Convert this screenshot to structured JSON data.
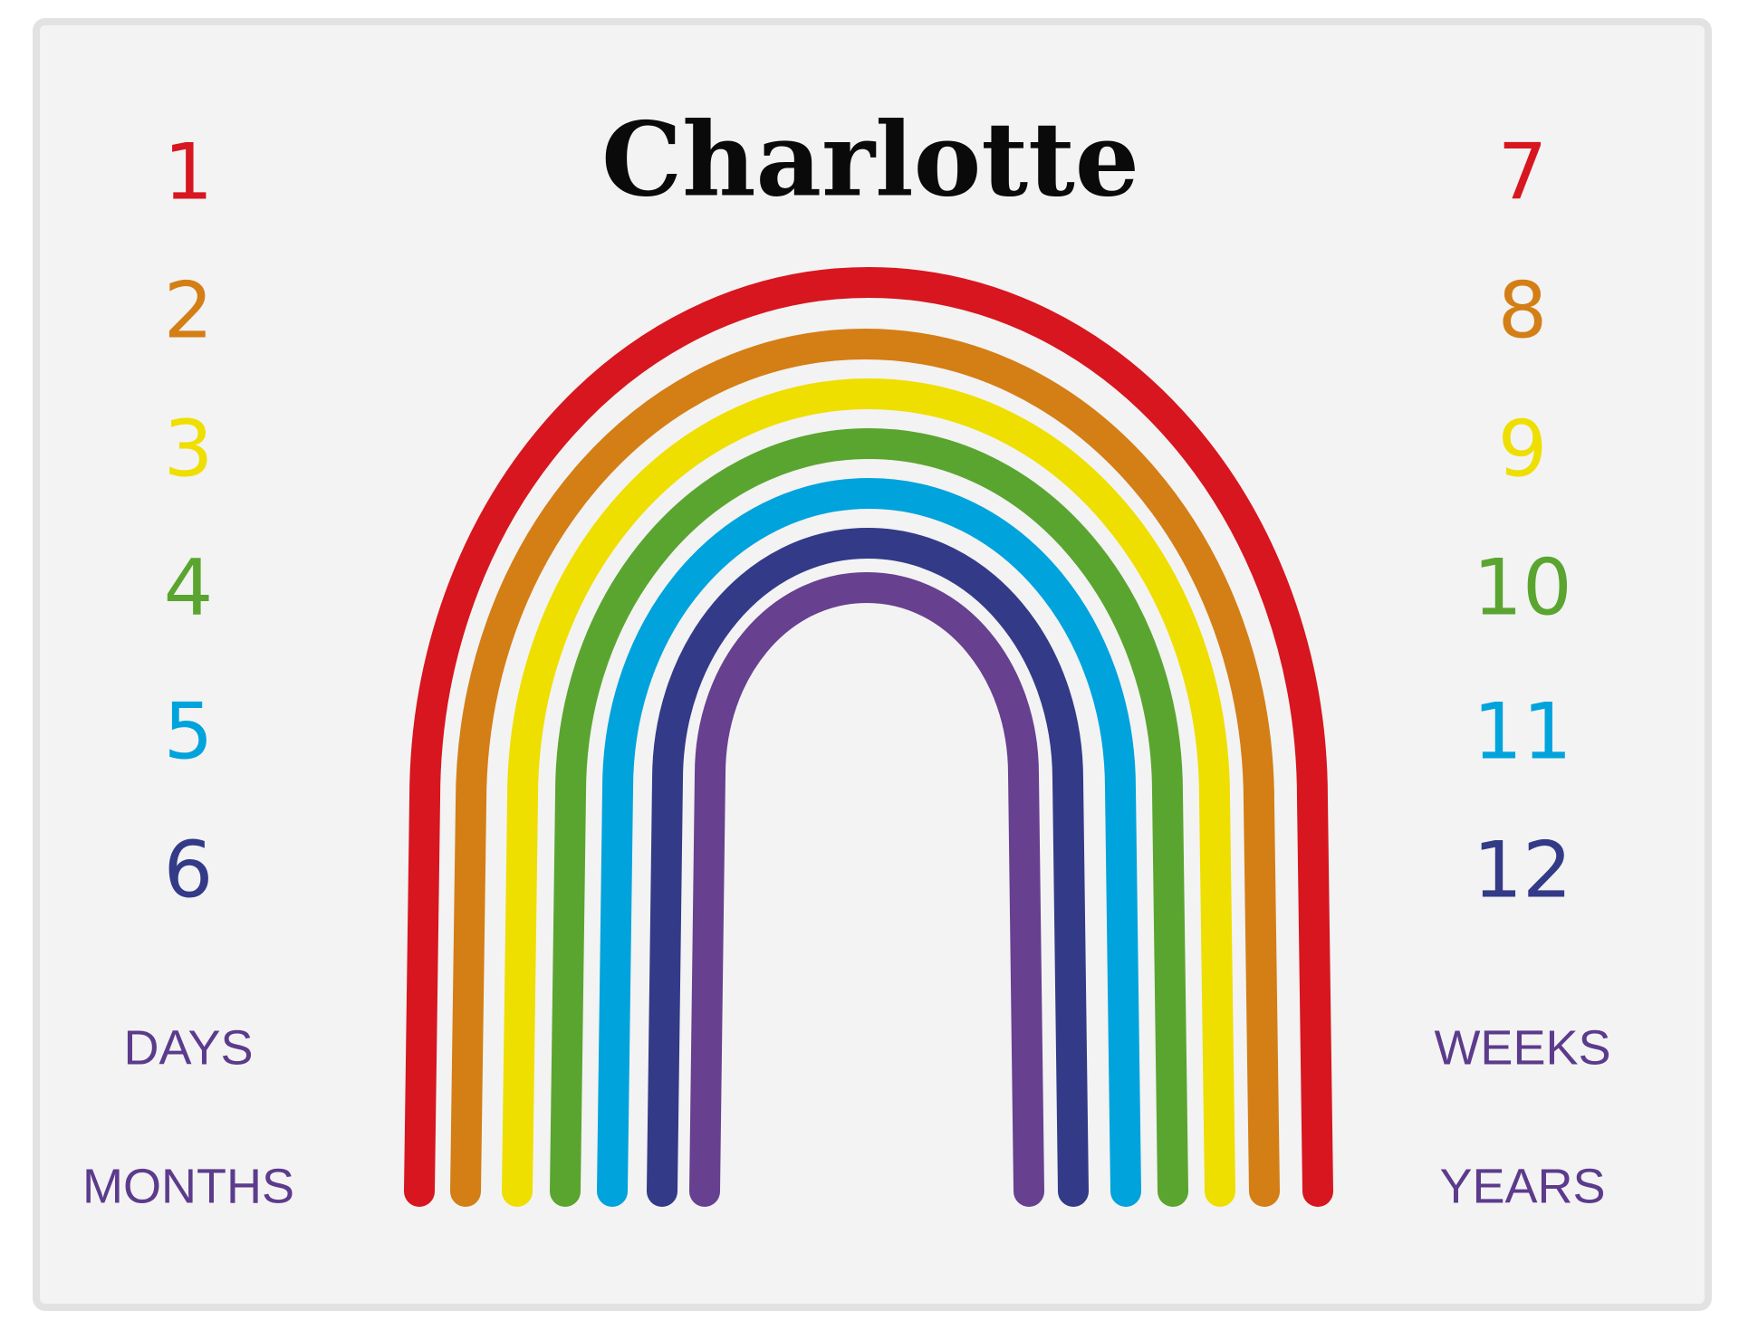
{
  "title": "Charlotte",
  "left_numbers": [
    "1",
    "2",
    "3",
    "4",
    "5",
    "6"
  ],
  "right_numbers": [
    "7",
    "8",
    "9",
    "10",
    "11",
    "12"
  ],
  "left_labels": [
    "DAYS",
    "MONTHS"
  ],
  "right_labels": [
    "WEEKS",
    "YEARS"
  ]
}
